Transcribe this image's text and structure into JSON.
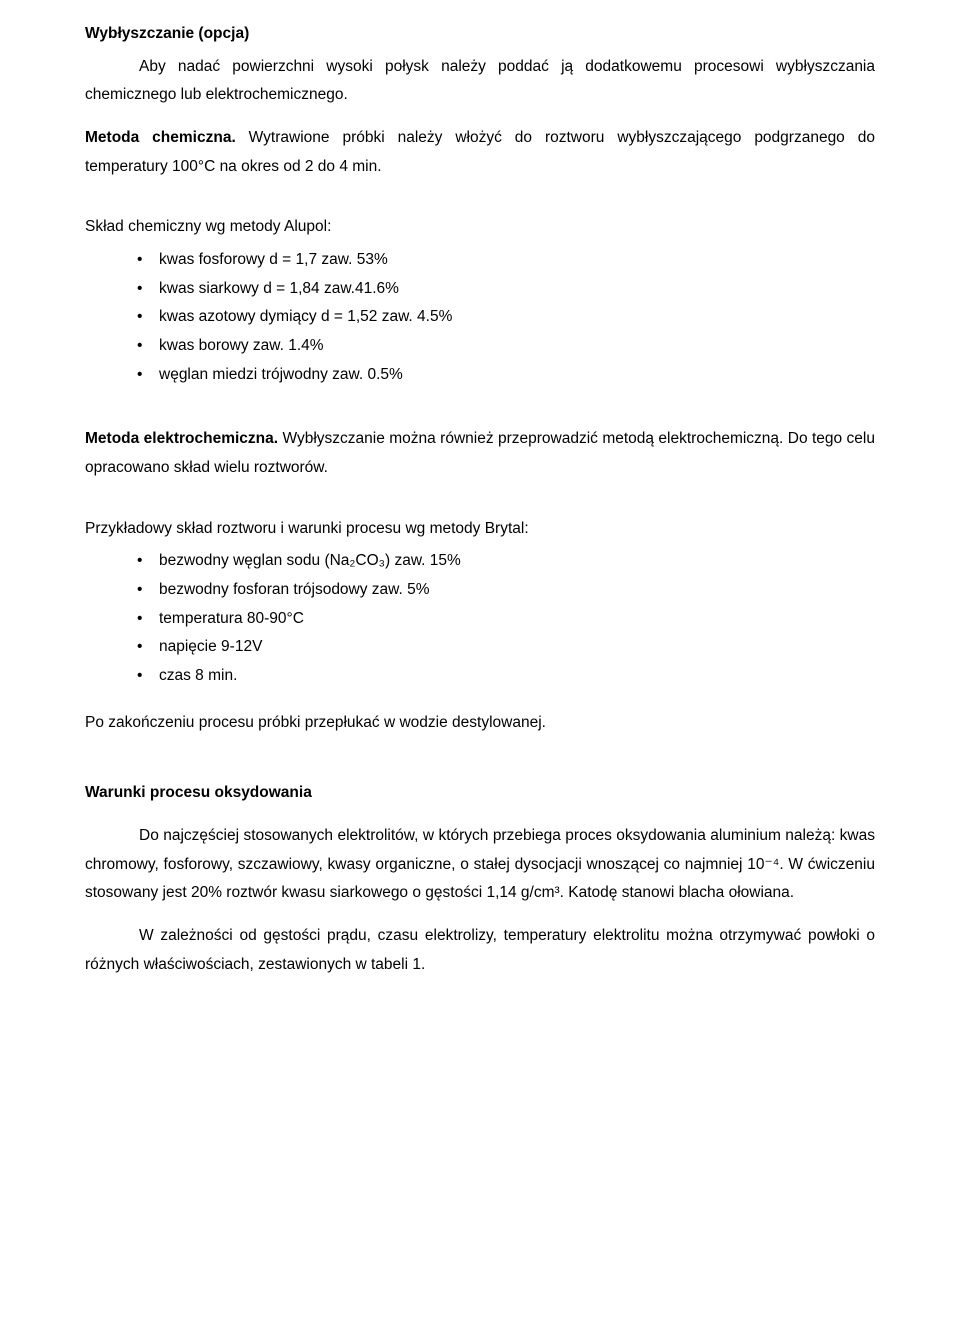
{
  "h1": "Wybłyszczanie (opcja)",
  "p1": "Aby nadać powierzchni wysoki połysk należy poddać ją dodatkowemu procesowi wybłyszczania chemicznego lub elektrochemicznego.",
  "p2a": "Metoda chemiczna.",
  "p2b": " Wytrawione próbki należy włożyć do roztworu wybłyszczającego podgrzanego do temperatury 100°C na okres od 2 do 4 min.",
  "p3": "Skład chemiczny wg metody Alupol:",
  "alupol": [
    "kwas fosforowy d = 1,7  zaw. 53%",
    "kwas siarkowy d = 1,84  zaw.41.6%",
    "kwas azotowy dymiący d = 1,52  zaw. 4.5%",
    "kwas borowy zaw. 1.4%",
    "węglan miedzi trójwodny zaw. 0.5%"
  ],
  "p4a": "Metoda elektrochemiczna.",
  "p4b": " Wybłyszczanie można również przeprowadzić metodą elektrochemiczną. Do tego celu opracowano skład wielu roztworów.",
  "p5": "Przykładowy skład roztworu i warunki procesu wg metody Brytal:",
  "brytal": [
    "bezwodny węglan sodu (Na₂CO₃) zaw. 15%",
    "bezwodny fosforan trójsodowy zaw. 5%",
    "temperatura 80-90°C",
    "napięcie 9-12V",
    "czas 8 min."
  ],
  "p6": "Po zakończeniu procesu próbki przepłukać w wodzie destylowanej.",
  "h2": "Warunki procesu oksydowania",
  "p7": "Do najczęściej stosowanych elektrolitów, w których przebiega proces oksydowania aluminium należą: kwas chromowy, fosforowy, szczawiowy, kwasy organiczne, o stałej dysocjacji wnoszącej co najmniej 10⁻⁴. W ćwiczeniu stosowany jest 20% roztwór kwasu siarkowego o gęstości 1,14 g/cm³. Katodę stanowi blacha ołowiana.",
  "p8": "W zależności od gęstości prądu, czasu elektrolizy, temperatury elektrolitu można otrzymywać powłoki o różnych właściwościach, zestawionych w tabeli 1."
}
